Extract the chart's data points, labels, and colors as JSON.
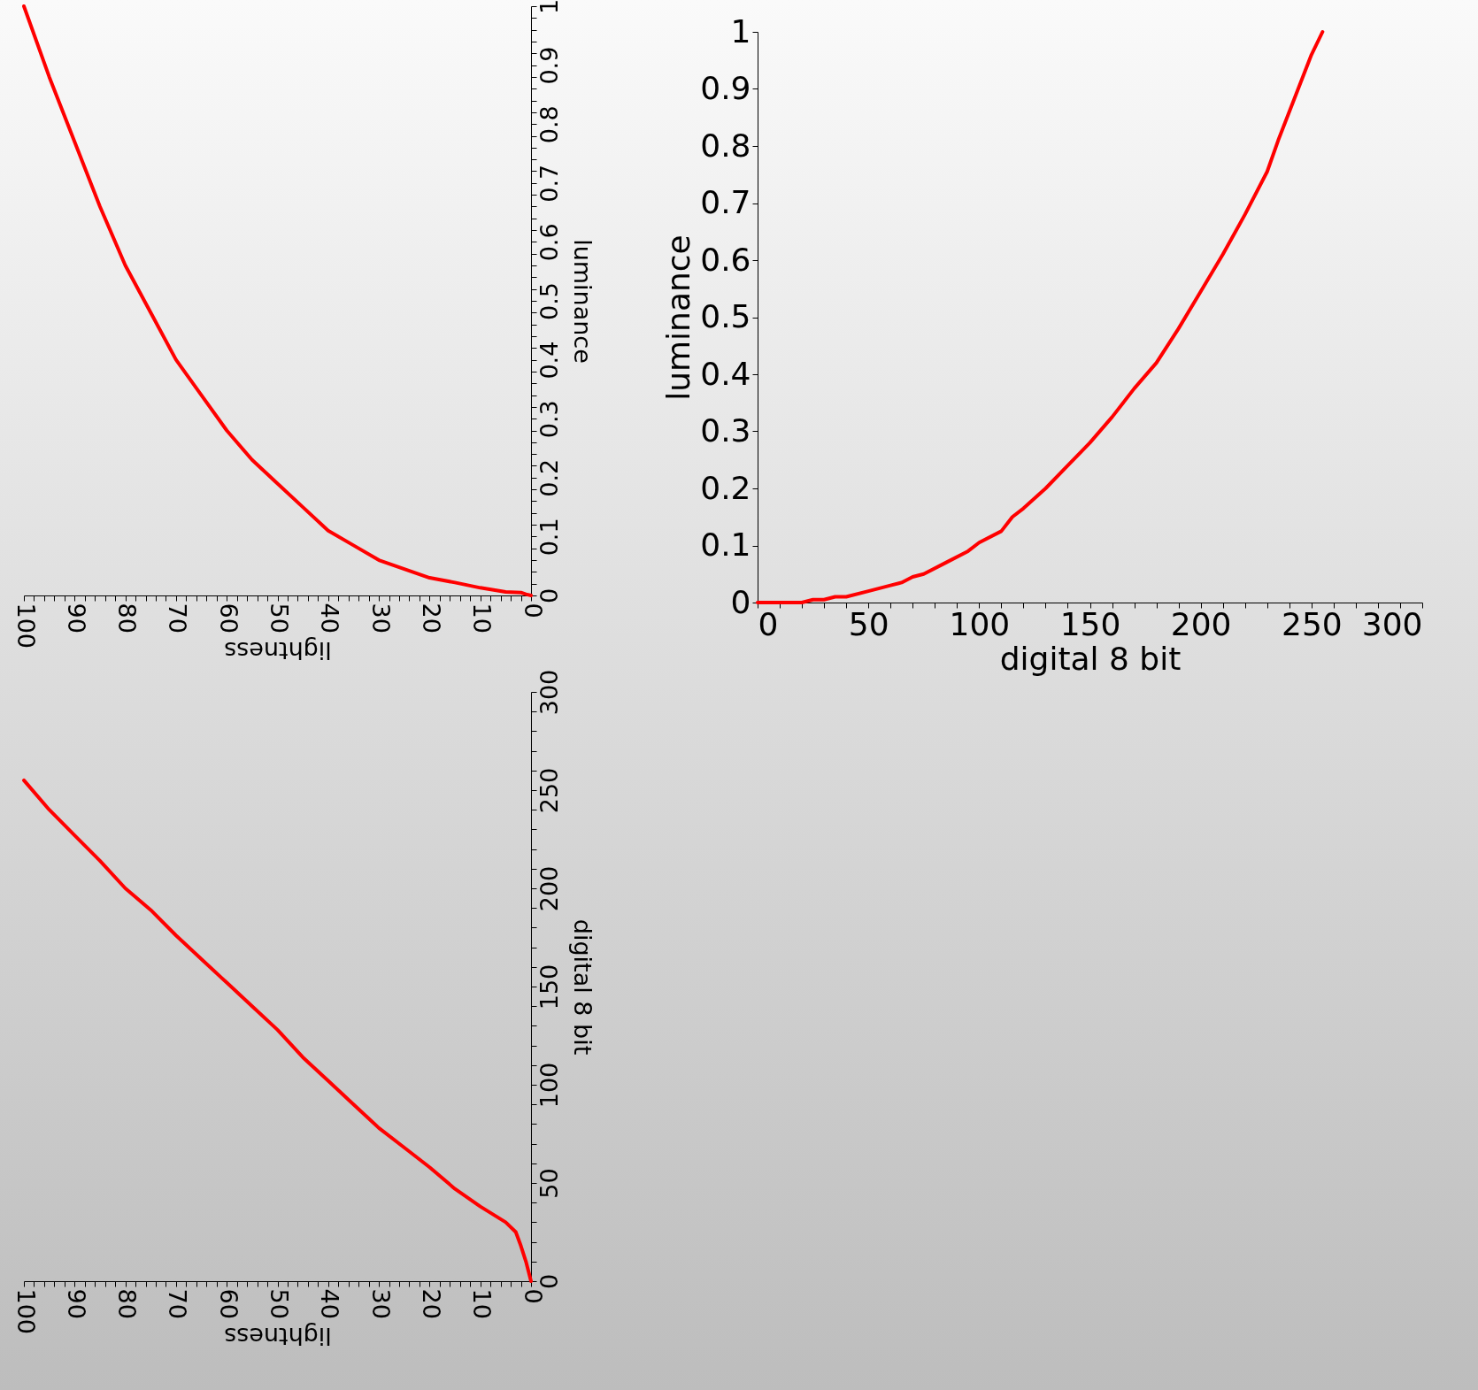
{
  "chart_data": [
    {
      "type": "line",
      "xlabel": "lightness",
      "ylabel": "luminance",
      "xlim": [
        100,
        0
      ],
      "ylim": [
        0,
        1
      ],
      "x": [
        100,
        95,
        90,
        85,
        80,
        75,
        70,
        65,
        60,
        55,
        50,
        45,
        40,
        35,
        30,
        25,
        20,
        15,
        10,
        5,
        2,
        1,
        0
      ],
      "series": [
        {
          "color": "#ff0000",
          "values": [
            1,
            0.88,
            0.77,
            0.66,
            0.56,
            0.48,
            0.4,
            0.34,
            0.28,
            0.23,
            0.19,
            0.15,
            0.11,
            0.085,
            0.06,
            0.045,
            0.03,
            0.022,
            0.013,
            0.006,
            0.005,
            0.002,
            0
          ]
        }
      ],
      "xticks": [
        0,
        {
          "value": 2,
          "label": null
        },
        {
          "value": 4,
          "label": null
        },
        {
          "value": 6,
          "label": null
        },
        {
          "value": 8,
          "label": null
        },
        10,
        {
          "value": 12,
          "label": null
        },
        {
          "value": 14,
          "label": null
        },
        {
          "value": 16,
          "label": null
        },
        {
          "value": 18,
          "label": null
        },
        20,
        {
          "value": 22,
          "label": null
        },
        {
          "value": 24,
          "label": null
        },
        {
          "value": 26,
          "label": null
        },
        {
          "value": 28,
          "label": null
        },
        30,
        {
          "value": 32,
          "label": null
        },
        {
          "value": 34,
          "label": null
        },
        {
          "value": 36,
          "label": null
        },
        {
          "value": 38,
          "label": null
        },
        40,
        {
          "value": 42,
          "label": null
        },
        {
          "value": 44,
          "label": null
        },
        {
          "value": 46,
          "label": null
        },
        {
          "value": 48,
          "label": null
        },
        50,
        {
          "value": 52,
          "label": null
        },
        {
          "value": 54,
          "label": null
        },
        {
          "value": 56,
          "label": null
        },
        {
          "value": 58,
          "label": null
        },
        60,
        {
          "value": 62,
          "label": null
        },
        {
          "value": 64,
          "label": null
        },
        {
          "value": 66,
          "label": null
        },
        {
          "value": 68,
          "label": null
        },
        70,
        {
          "value": 72,
          "label": null
        },
        {
          "value": 74,
          "label": null
        },
        {
          "value": 76,
          "label": null
        },
        {
          "value": 78,
          "label": null
        },
        80,
        {
          "value": 82,
          "label": null
        },
        {
          "value": 84,
          "label": null
        },
        {
          "value": 86,
          "label": null
        },
        {
          "value": 88,
          "label": null
        },
        90,
        {
          "value": 92,
          "label": null
        },
        {
          "value": 94,
          "label": null
        },
        {
          "value": 96,
          "label": null
        },
        {
          "value": 98,
          "label": null
        },
        100
      ],
      "yticks": [
        0,
        {
          "value": 0.02,
          "label": null
        },
        {
          "value": 0.04,
          "label": null
        },
        {
          "value": 0.06,
          "label": null
        },
        {
          "value": 0.08,
          "label": null
        },
        0.1,
        {
          "value": 0.12,
          "label": null
        },
        {
          "value": 0.14,
          "label": null
        },
        {
          "value": 0.16,
          "label": null
        },
        {
          "value": 0.18,
          "label": null
        },
        0.2,
        {
          "value": 0.22,
          "label": null
        },
        {
          "value": 0.24,
          "label": null
        },
        {
          "value": 0.26,
          "label": null
        },
        {
          "value": 0.28,
          "label": null
        },
        0.3,
        {
          "value": 0.32,
          "label": null
        },
        {
          "value": 0.34,
          "label": null
        },
        {
          "value": 0.36,
          "label": null
        },
        {
          "value": 0.38,
          "label": null
        },
        0.4,
        {
          "value": 0.42,
          "label": null
        },
        {
          "value": 0.44,
          "label": null
        },
        {
          "value": 0.46,
          "label": null
        },
        {
          "value": 0.48,
          "label": null
        },
        0.5,
        {
          "value": 0.52,
          "label": null
        },
        {
          "value": 0.54,
          "label": null
        },
        {
          "value": 0.56,
          "label": null
        },
        {
          "value": 0.58,
          "label": null
        },
        0.6,
        {
          "value": 0.62,
          "label": null
        },
        {
          "value": 0.64,
          "label": null
        },
        {
          "value": 0.66,
          "label": null
        },
        {
          "value": 0.68,
          "label": null
        },
        0.7,
        {
          "value": 0.72,
          "label": null
        },
        {
          "value": 0.74,
          "label": null
        },
        {
          "value": 0.76,
          "label": null
        },
        {
          "value": 0.78,
          "label": null
        },
        0.8,
        {
          "value": 0.82,
          "label": null
        },
        {
          "value": 0.84,
          "label": null
        },
        {
          "value": 0.86,
          "label": null
        },
        {
          "value": 0.88,
          "label": null
        },
        0.9,
        {
          "value": 0.92,
          "label": null
        },
        {
          "value": 0.94,
          "label": null
        },
        {
          "value": 0.96,
          "label": null
        },
        {
          "value": 0.98,
          "label": null
        },
        1
      ]
    },
    {
      "type": "line",
      "xlabel": "digital 8 bit",
      "ylabel": "luminance",
      "xlim": [
        0,
        300
      ],
      "ylim": [
        0,
        1
      ],
      "x": [
        0,
        20,
        25,
        30,
        35,
        40,
        50,
        60,
        65,
        70,
        75,
        85,
        95,
        100,
        110,
        115,
        120,
        130,
        140,
        150,
        160,
        170,
        180,
        190,
        200,
        210,
        220,
        230,
        235,
        240,
        245,
        250,
        255
      ],
      "series": [
        {
          "color": "#ff0000",
          "values": [
            0,
            0,
            0.005,
            0.005,
            0.01,
            0.01,
            0.02,
            0.03,
            0.035,
            0.045,
            0.05,
            0.07,
            0.09,
            0.105,
            0.125,
            0.15,
            0.165,
            0.2,
            0.24,
            0.28,
            0.325,
            0.375,
            0.42,
            0.48,
            0.545,
            0.61,
            0.68,
            0.755,
            0.81,
            0.86,
            0.91,
            0.96,
            1
          ]
        }
      ],
      "xticks": [
        0,
        {
          "value": 10,
          "label": null
        },
        {
          "value": 20,
          "label": null
        },
        {
          "value": 30,
          "label": null
        },
        {
          "value": 40,
          "label": null
        },
        50,
        {
          "value": 60,
          "label": null
        },
        {
          "value": 70,
          "label": null
        },
        {
          "value": 80,
          "label": null
        },
        {
          "value": 90,
          "label": null
        },
        100,
        {
          "value": 110,
          "label": null
        },
        {
          "value": 120,
          "label": null
        },
        {
          "value": 130,
          "label": null
        },
        {
          "value": 140,
          "label": null
        },
        150,
        {
          "value": 160,
          "label": null
        },
        {
          "value": 170,
          "label": null
        },
        {
          "value": 180,
          "label": null
        },
        {
          "value": 190,
          "label": null
        },
        200,
        {
          "value": 210,
          "label": null
        },
        {
          "value": 220,
          "label": null
        },
        {
          "value": 230,
          "label": null
        },
        {
          "value": 240,
          "label": null
        },
        250,
        {
          "value": 260,
          "label": null
        },
        {
          "value": 270,
          "label": null
        },
        {
          "value": 280,
          "label": null
        },
        {
          "value": 290,
          "label": null
        },
        300
      ],
      "yticks": [
        0,
        0.1,
        0.2,
        0.3,
        0.4,
        0.5,
        0.6,
        0.7,
        0.8,
        0.9,
        1
      ]
    },
    {
      "type": "line",
      "xlabel": "lightness",
      "ylabel": "digital 8 bit",
      "xlim": [
        100,
        0
      ],
      "ylim": [
        0,
        300
      ],
      "x": [
        100,
        95,
        90,
        85,
        80,
        75,
        70,
        65,
        60,
        55,
        50,
        45,
        40,
        35,
        30,
        25,
        20,
        15,
        10,
        5,
        3,
        2,
        1,
        0
      ],
      "series": [
        {
          "color": "#ff0000",
          "values": [
            255,
            240,
            227,
            214,
            200,
            189,
            176,
            164,
            152,
            140,
            128,
            114,
            102,
            90,
            78,
            68,
            58,
            47,
            38,
            30,
            25,
            18,
            10,
            0
          ]
        }
      ],
      "xticks": [
        0,
        {
          "value": 2,
          "label": null
        },
        {
          "value": 4,
          "label": null
        },
        {
          "value": 6,
          "label": null
        },
        {
          "value": 8,
          "label": null
        },
        10,
        {
          "value": 12,
          "label": null
        },
        {
          "value": 14,
          "label": null
        },
        {
          "value": 16,
          "label": null
        },
        {
          "value": 18,
          "label": null
        },
        20,
        {
          "value": 22,
          "label": null
        },
        {
          "value": 24,
          "label": null
        },
        {
          "value": 26,
          "label": null
        },
        {
          "value": 28,
          "label": null
        },
        30,
        {
          "value": 32,
          "label": null
        },
        {
          "value": 34,
          "label": null
        },
        {
          "value": 36,
          "label": null
        },
        {
          "value": 38,
          "label": null
        },
        40,
        {
          "value": 42,
          "label": null
        },
        {
          "value": 44,
          "label": null
        },
        {
          "value": 46,
          "label": null
        },
        {
          "value": 48,
          "label": null
        },
        50,
        {
          "value": 52,
          "label": null
        },
        {
          "value": 54,
          "label": null
        },
        {
          "value": 56,
          "label": null
        },
        {
          "value": 58,
          "label": null
        },
        60,
        {
          "value": 62,
          "label": null
        },
        {
          "value": 64,
          "label": null
        },
        {
          "value": 66,
          "label": null
        },
        {
          "value": 68,
          "label": null
        },
        70,
        {
          "value": 72,
          "label": null
        },
        {
          "value": 74,
          "label": null
        },
        {
          "value": 76,
          "label": null
        },
        {
          "value": 78,
          "label": null
        },
        80,
        {
          "value": 82,
          "label": null
        },
        {
          "value": 84,
          "label": null
        },
        {
          "value": 86,
          "label": null
        },
        {
          "value": 88,
          "label": null
        },
        90,
        {
          "value": 92,
          "label": null
        },
        {
          "value": 94,
          "label": null
        },
        {
          "value": 96,
          "label": null
        },
        {
          "value": 98,
          "label": null
        },
        100
      ],
      "yticks": [
        0,
        {
          "value": 10,
          "label": null
        },
        {
          "value": 20,
          "label": null
        },
        {
          "value": 30,
          "label": null
        },
        {
          "value": 40,
          "label": null
        },
        50,
        {
          "value": 60,
          "label": null
        },
        {
          "value": 70,
          "label": null
        },
        {
          "value": 80,
          "label": null
        },
        {
          "value": 90,
          "label": null
        },
        100,
        {
          "value": 110,
          "label": null
        },
        {
          "value": 120,
          "label": null
        },
        {
          "value": 130,
          "label": null
        },
        {
          "value": 140,
          "label": null
        },
        150,
        {
          "value": 160,
          "label": null
        },
        {
          "value": 170,
          "label": null
        },
        {
          "value": 180,
          "label": null
        },
        {
          "value": 190,
          "label": null
        },
        200,
        {
          "value": 210,
          "label": null
        },
        {
          "value": 220,
          "label": null
        },
        {
          "value": 230,
          "label": null
        },
        {
          "value": 240,
          "label": null
        },
        250,
        {
          "value": 260,
          "label": null
        },
        {
          "value": 270,
          "label": null
        },
        {
          "value": 280,
          "label": null
        },
        {
          "value": 290,
          "label": null
        },
        300
      ]
    }
  ]
}
